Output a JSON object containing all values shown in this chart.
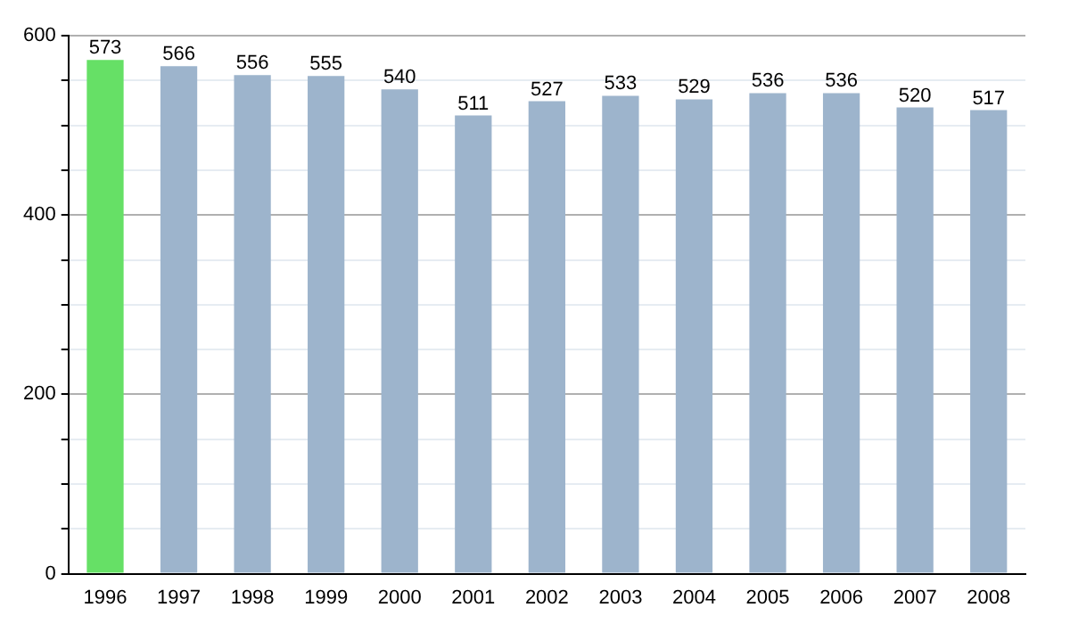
{
  "chart_data": {
    "type": "bar",
    "categories": [
      "1996",
      "1997",
      "1998",
      "1999",
      "2000",
      "2001",
      "2002",
      "2003",
      "2004",
      "2005",
      "2006",
      "2007",
      "2008"
    ],
    "values": [
      573,
      566,
      556,
      555,
      540,
      511,
      527,
      533,
      529,
      536,
      536,
      520,
      517
    ],
    "colors": [
      "#66e066",
      "#9db4cc",
      "#9db4cc",
      "#9db4cc",
      "#9db4cc",
      "#9db4cc",
      "#9db4cc",
      "#9db4cc",
      "#9db4cc",
      "#9db4cc",
      "#9db4cc",
      "#9db4cc",
      "#9db4cc"
    ],
    "ylim": [
      0,
      600
    ],
    "yticks": [
      0,
      {
        "value": 50,
        "label": null
      },
      {
        "value": 100,
        "label": null
      },
      {
        "value": 150,
        "label": null
      },
      200,
      {
        "value": 250,
        "label": null
      },
      {
        "value": 300,
        "label": null
      },
      {
        "value": 350,
        "label": null
      },
      400,
      {
        "value": 450,
        "label": null
      },
      {
        "value": 500,
        "label": null
      },
      {
        "value": 550,
        "label": null
      },
      600
    ],
    "grid": "y",
    "data_labels": true
  }
}
